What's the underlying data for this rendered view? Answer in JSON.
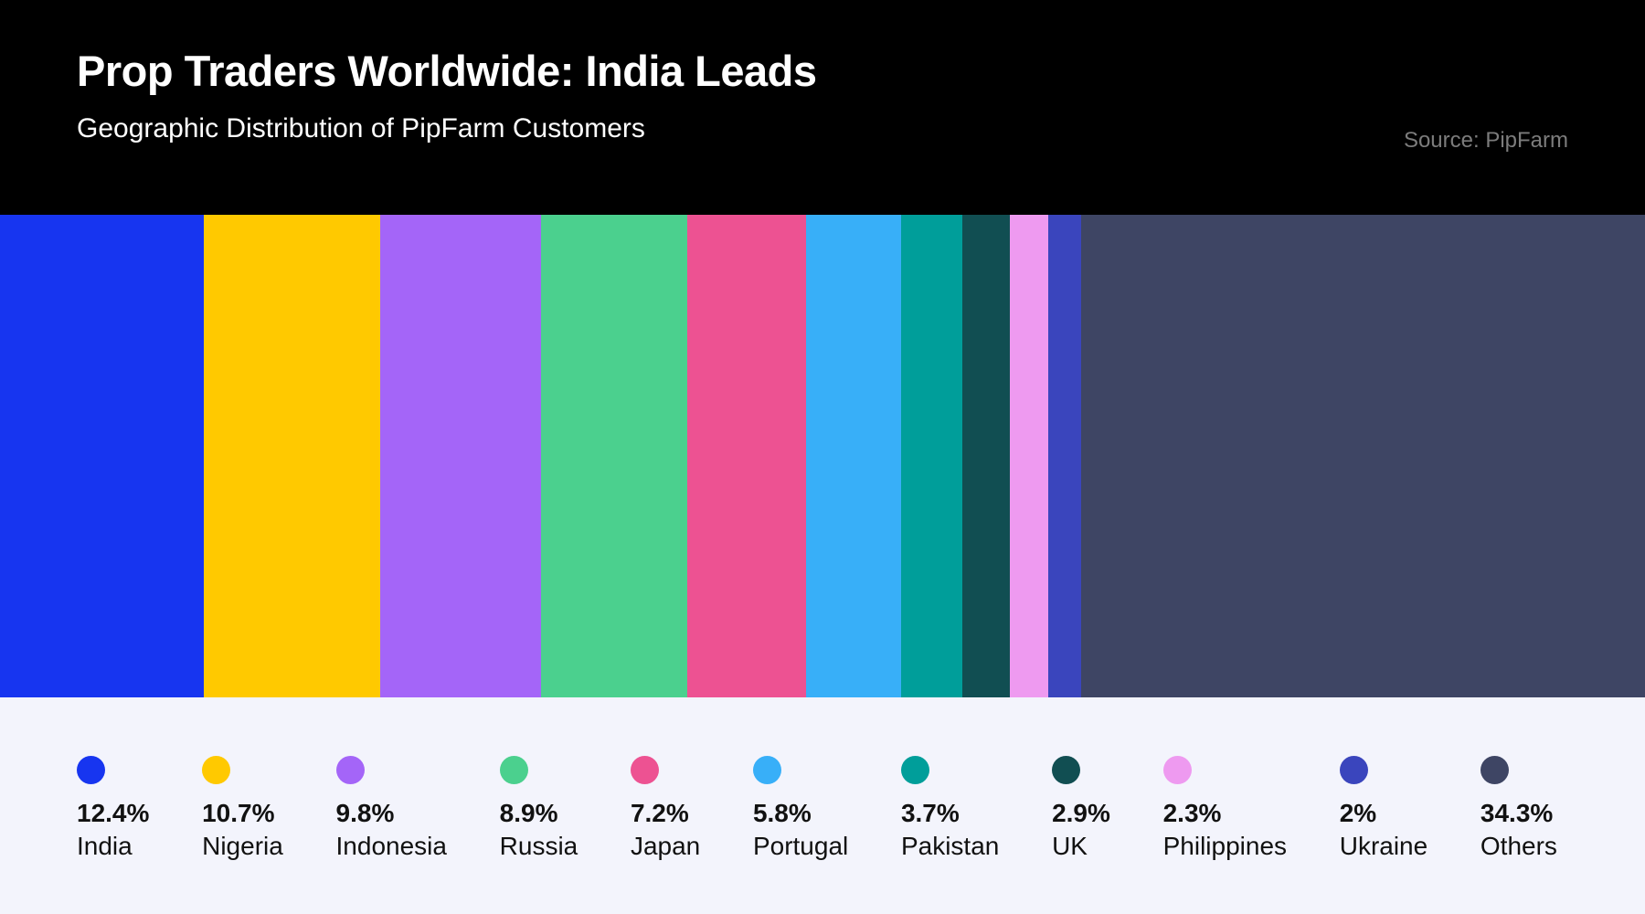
{
  "header": {
    "title": "Prop Traders Worldwide: India Leads",
    "subtitle": "Geographic Distribution of PipFarm Customers",
    "source": "Source: PipFarm"
  },
  "colors": {
    "header_bg": "#000000",
    "header_text": "#ffffff",
    "source_text": "#7c7c7c",
    "legend_bg": "#f3f4fc",
    "legend_text": "#111111"
  },
  "chart_data": {
    "type": "bar",
    "variant": "stacked-horizontal-100percent",
    "title": "Prop Traders Worldwide: India Leads",
    "subtitle": "Geographic Distribution of PipFarm Customers",
    "source": "Source: PipFarm",
    "categories": [
      "India",
      "Nigeria",
      "Indonesia",
      "Russia",
      "Japan",
      "Portugal",
      "Pakistan",
      "UK",
      "Philippines",
      "Ukraine",
      "Others"
    ],
    "values": [
      12.4,
      10.7,
      9.8,
      8.9,
      7.2,
      5.8,
      3.7,
      2.9,
      2.3,
      2,
      34.3
    ],
    "value_labels": [
      "12.4%",
      "10.7%",
      "9.8%",
      "8.9%",
      "7.2%",
      "5.8%",
      "3.7%",
      "2.9%",
      "2.3%",
      "2%",
      "34.3%"
    ],
    "colors": [
      "#1735f0",
      "#ffc900",
      "#a465f8",
      "#4bd08e",
      "#ed5292",
      "#38aff8",
      "#009e9a",
      "#114e52",
      "#ee9af0",
      "#3a45bd",
      "#3e4564"
    ],
    "xlim": [
      0,
      100
    ],
    "axis": "none",
    "grid": false,
    "legend_position": "bottom"
  }
}
